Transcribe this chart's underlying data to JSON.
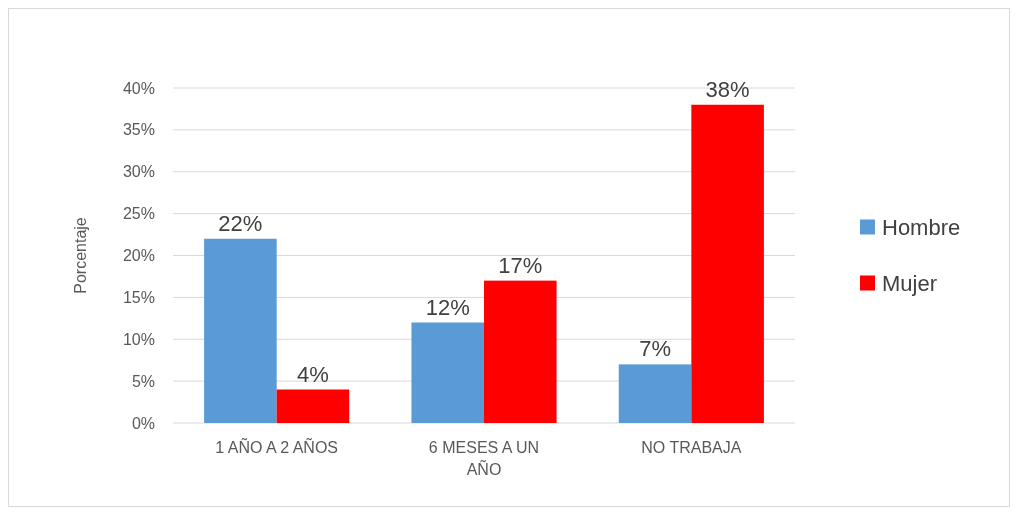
{
  "chart_data": {
    "type": "bar",
    "ylabel": "Porcentaje",
    "categories": [
      "1 AÑO A 2 AÑOS",
      "6 MESES A UN AÑO",
      "NO TRABAJA"
    ],
    "series": [
      {
        "name": "Hombre",
        "color": "#5b9bd5",
        "values": [
          22,
          12,
          7
        ],
        "value_labels": [
          "22%",
          "12%",
          "7%"
        ]
      },
      {
        "name": "Mujer",
        "color": "#ff0000",
        "values": [
          4,
          17,
          38
        ],
        "value_labels": [
          "4%",
          "17%",
          "38%"
        ]
      }
    ],
    "ylim": [
      0,
      40
    ],
    "yticks": [
      {
        "value": 0,
        "label": "0%"
      },
      {
        "value": 5,
        "label": "5%"
      },
      {
        "value": 10,
        "label": "10%"
      },
      {
        "value": 15,
        "label": "15%"
      },
      {
        "value": 20,
        "label": "20%"
      },
      {
        "value": 25,
        "label": "25%"
      },
      {
        "value": 30,
        "label": "30%"
      },
      {
        "value": 35,
        "label": "35%"
      },
      {
        "value": 40,
        "label": "40%"
      }
    ],
    "grid": "y",
    "legend": "right"
  }
}
